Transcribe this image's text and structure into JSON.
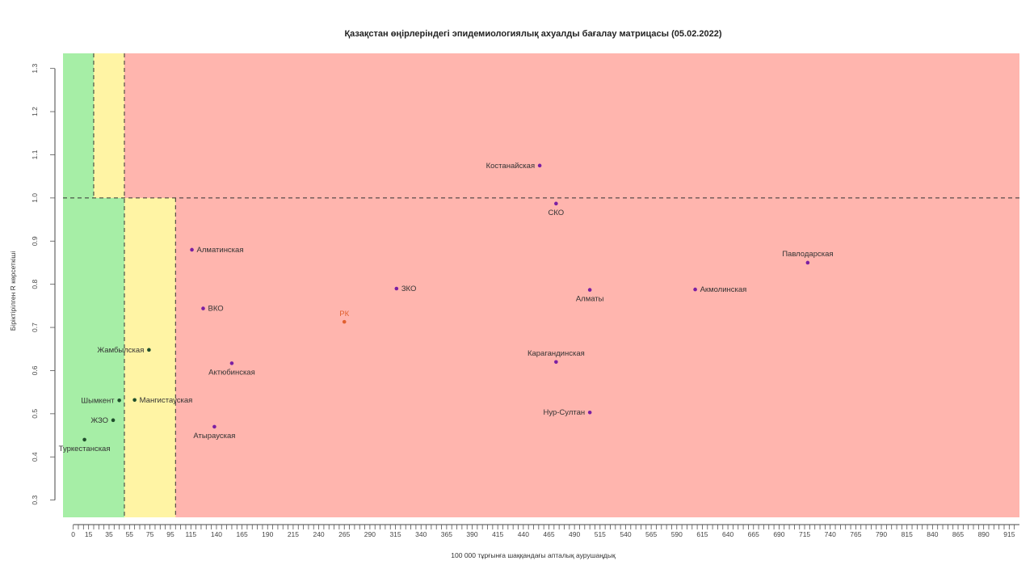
{
  "chart_data": {
    "type": "scatter",
    "title": "Қазақстан өңірлеріндегі эпидемиологиялық ахуалды бағалау матрицасы (05.02.2022)",
    "xlabel": "100 000 тұрғынға шаққандағы апталық аурушаңдық",
    "ylabel": "Біріктірілген R көрсеткіші",
    "xlim": [
      -10,
      925
    ],
    "ylim": [
      0.26,
      1.335
    ],
    "x_ticks": [
      0,
      15,
      35,
      55,
      75,
      95,
      115,
      140,
      165,
      190,
      215,
      240,
      265,
      290,
      315,
      340,
      365,
      390,
      415,
      440,
      465,
      490,
      515,
      540,
      565,
      590,
      615,
      640,
      665,
      690,
      715,
      740,
      765,
      790,
      815,
      840,
      865,
      890,
      915
    ],
    "y_ticks": [
      0.3,
      0.4,
      0.5,
      0.6,
      0.7,
      0.8,
      0.9,
      1.0,
      1.1,
      1.2,
      1.3
    ],
    "threshold_lines": {
      "x": [
        20,
        50,
        100
      ],
      "y": 1.0
    },
    "zones": [
      {
        "zone": "green",
        "color": "#a6eea6"
      },
      {
        "zone": "yellow",
        "color": "#fff4a4"
      },
      {
        "zone": "red",
        "color": "#ffb5ae"
      }
    ],
    "points": [
      {
        "name": "Костанайская",
        "x": 456,
        "y": 1.075,
        "color": "#7b1fa2"
      },
      {
        "name": "СКО",
        "x": 472,
        "y": 0.987,
        "color": "#7b1fa2"
      },
      {
        "name": "Алматинская",
        "x": 116,
        "y": 0.88,
        "color": "#7b1fa2"
      },
      {
        "name": "Павлодарская",
        "x": 718,
        "y": 0.85,
        "color": "#7b1fa2"
      },
      {
        "name": "ЗКО",
        "x": 316,
        "y": 0.79,
        "color": "#7b1fa2"
      },
      {
        "name": "Алматы",
        "x": 505,
        "y": 0.787,
        "color": "#7b1fa2"
      },
      {
        "name": "Акмолинская",
        "x": 608,
        "y": 0.788,
        "color": "#7b1fa2"
      },
      {
        "name": "ВКО",
        "x": 127,
        "y": 0.744,
        "color": "#7b1fa2"
      },
      {
        "name": "РК",
        "x": 265,
        "y": 0.713,
        "color": "#e06030"
      },
      {
        "name": "Жамбылская",
        "x": 74,
        "y": 0.648,
        "color": "#1f4e2c"
      },
      {
        "name": "Актюбинская",
        "x": 155,
        "y": 0.617,
        "color": "#7b1fa2"
      },
      {
        "name": "Карагандинская",
        "x": 472,
        "y": 0.62,
        "color": "#7b1fa2"
      },
      {
        "name": "Шымкент",
        "x": 45,
        "y": 0.531,
        "color": "#1f4e2c"
      },
      {
        "name": "Мангистауская",
        "x": 60,
        "y": 0.532,
        "color": "#1f4e2c"
      },
      {
        "name": "ЖЗО",
        "x": 39,
        "y": 0.485,
        "color": "#1f4e2c"
      },
      {
        "name": "Нур-Султан",
        "x": 505,
        "y": 0.503,
        "color": "#7b1fa2"
      },
      {
        "name": "Атырауская",
        "x": 138,
        "y": 0.47,
        "color": "#7b1fa2"
      },
      {
        "name": "Туркестанская",
        "x": 11,
        "y": 0.44,
        "color": "#1f4e2c"
      }
    ]
  }
}
